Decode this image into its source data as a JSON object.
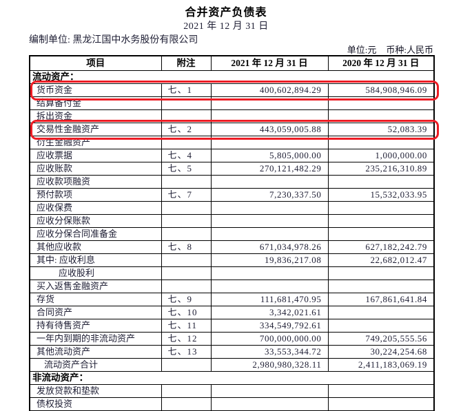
{
  "meta": {
    "title": "合并资产负债表",
    "date": "2021 年 12 月 31 日",
    "prepared_label": "编制单位:",
    "company": "黑龙江国中水务股份有限公司",
    "unit_label": "单位:元",
    "currency_label": "币种:人民币"
  },
  "table": {
    "headers": [
      "项目",
      "附注",
      "2021 年 12 月 31 日",
      "2020 年 12 月 31 日"
    ],
    "rows": [
      {
        "level": "section",
        "item": "流动资产："
      },
      {
        "level": "item",
        "item": "货币资金",
        "note": "七、1",
        "y2021": "400,602,894.29",
        "y2020": "584,908,946.09",
        "highlight": true
      },
      {
        "level": "item",
        "item": "结算备付金",
        "note": "",
        "y2021": "",
        "y2020": ""
      },
      {
        "level": "item",
        "item": "拆出资金",
        "note": "",
        "y2021": "",
        "y2020": ""
      },
      {
        "level": "item",
        "item": "交易性金融资产",
        "note": "七、2",
        "y2021": "443,059,005.88",
        "y2020": "52,083.39",
        "highlight": true
      },
      {
        "level": "item",
        "item": "衍生金融资产",
        "note": "",
        "y2021": "",
        "y2020": ""
      },
      {
        "level": "item",
        "item": "应收票据",
        "note": "七、4",
        "y2021": "5,805,000.00",
        "y2020": "1,000,000.00"
      },
      {
        "level": "item",
        "item": "应收账款",
        "note": "七、5",
        "y2021": "270,121,482.29",
        "y2020": "235,216,310.89"
      },
      {
        "level": "item",
        "item": "应收款项融资",
        "note": "",
        "y2021": "",
        "y2020": ""
      },
      {
        "level": "item",
        "item": "预付款项",
        "note": "七、7",
        "y2021": "7,230,337.50",
        "y2020": "15,532,033.95"
      },
      {
        "level": "item",
        "item": "应收保费",
        "note": "",
        "y2021": "",
        "y2020": ""
      },
      {
        "level": "item",
        "item": "应收分保账款",
        "note": "",
        "y2021": "",
        "y2020": ""
      },
      {
        "level": "item",
        "item": "应收分保合同准备金",
        "note": "",
        "y2021": "",
        "y2020": ""
      },
      {
        "level": "item",
        "item": "其他应收款",
        "note": "七、8",
        "y2021": "671,034,978.26",
        "y2020": "627,182,242.79"
      },
      {
        "level": "item",
        "item": "其中: 应收利息",
        "note": "",
        "y2021": "19,836,217.08",
        "y2020": "22,682,012.47"
      },
      {
        "level": "detail",
        "item": "应收股利",
        "note": "",
        "y2021": "",
        "y2020": ""
      },
      {
        "level": "item",
        "item": "买入返售金融资产",
        "note": "",
        "y2021": "",
        "y2020": ""
      },
      {
        "level": "item",
        "item": "存货",
        "note": "七、9",
        "y2021": "111,681,470.95",
        "y2020": "167,861,641.84"
      },
      {
        "level": "item",
        "item": "合同资产",
        "note": "七、10",
        "y2021": "3,342,021.61",
        "y2020": ""
      },
      {
        "level": "item",
        "item": "持有待售资产",
        "note": "七、11",
        "y2021": "334,549,792.61",
        "y2020": ""
      },
      {
        "level": "item",
        "item": "一年内到期的非流动资产",
        "note": "七、12",
        "y2021": "700,000,000.00",
        "y2020": "749,205,555.56"
      },
      {
        "level": "item",
        "item": "其他流动资产",
        "note": "七、13",
        "y2021": "33,553,344.72",
        "y2020": "30,224,254.68"
      },
      {
        "level": "subtotal",
        "item": "流动资产合计",
        "note": "",
        "y2021": "2,980,980,328.11",
        "y2020": "2,411,183,069.19"
      },
      {
        "level": "section",
        "item": "非流动资产："
      },
      {
        "level": "item",
        "item": "发放贷款和垫款",
        "note": "",
        "y2021": "",
        "y2020": ""
      },
      {
        "level": "item",
        "item": "债权投资",
        "note": "",
        "y2021": "",
        "y2020": ""
      }
    ]
  },
  "annotations": {
    "highlight_color": "#ed1c24",
    "highlighted_items": [
      "货币资金",
      "交易性金融资产"
    ]
  }
}
